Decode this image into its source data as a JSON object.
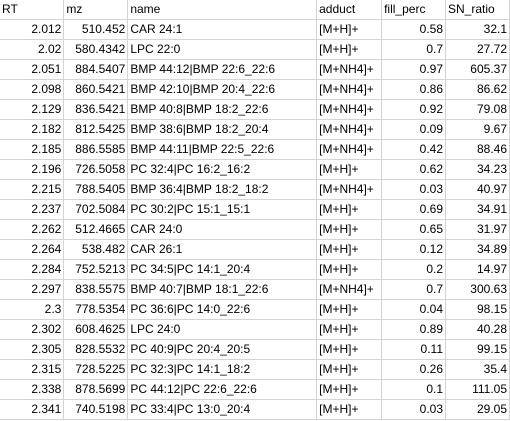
{
  "columns": [
    "RT",
    "mz",
    "name",
    "adduct",
    "fill_perc",
    "SN_ratio"
  ],
  "rows": [
    [
      "2.012",
      "510.452",
      "CAR 24:1",
      "[M+H]+",
      "0.58",
      "32.1"
    ],
    [
      "2.02",
      "580.4342",
      "LPC 22:0",
      "[M+H]+",
      "0.7",
      "27.72"
    ],
    [
      "2.051",
      "884.5407",
      "BMP 44:12|BMP 22:6_22:6",
      "[M+NH4]+",
      "0.97",
      "605.37"
    ],
    [
      "2.098",
      "860.5421",
      "BMP 42:10|BMP 20:4_22:6",
      "[M+NH4]+",
      "0.86",
      "86.62"
    ],
    [
      "2.129",
      "836.5421",
      "BMP 40:8|BMP 18:2_22:6",
      "[M+NH4]+",
      "0.92",
      "79.08"
    ],
    [
      "2.182",
      "812.5425",
      "BMP 38:6|BMP 18:2_20:4",
      "[M+NH4]+",
      "0.09",
      "9.67"
    ],
    [
      "2.185",
      "886.5585",
      "BMP 44:11|BMP 22:5_22:6",
      "[M+NH4]+",
      "0.42",
      "88.46"
    ],
    [
      "2.196",
      "726.5058",
      "PC 32:4|PC 16:2_16:2",
      "[M+H]+",
      "0.62",
      "34.23"
    ],
    [
      "2.215",
      "788.5405",
      "BMP 36:4|BMP 18:2_18:2",
      "[M+NH4]+",
      "0.03",
      "40.97"
    ],
    [
      "2.237",
      "702.5084",
      "PC 30:2|PC 15:1_15:1",
      "[M+H]+",
      "0.69",
      "34.91"
    ],
    [
      "2.262",
      "512.4665",
      "CAR 24:0",
      "[M+H]+",
      "0.65",
      "31.97"
    ],
    [
      "2.264",
      "538.482",
      "CAR 26:1",
      "[M+H]+",
      "0.12",
      "34.89"
    ],
    [
      "2.284",
      "752.5213",
      "PC 34:5|PC 14:1_20:4",
      "[M+H]+",
      "0.2",
      "14.97"
    ],
    [
      "2.297",
      "838.5575",
      "BMP 40:7|BMP 18:1_22:6",
      "[M+NH4]+",
      "0.7",
      "300.63"
    ],
    [
      "2.3",
      "778.5354",
      "PC 36:6|PC 14:0_22:6",
      "[M+H]+",
      "0.04",
      "98.15"
    ],
    [
      "2.302",
      "608.4625",
      "LPC 24:0",
      "[M+H]+",
      "0.89",
      "40.28"
    ],
    [
      "2.305",
      "828.5532",
      "PC 40:9|PC 20:4_20:5",
      "[M+H]+",
      "0.11",
      "99.15"
    ],
    [
      "2.315",
      "728.5225",
      "PC 32:3|PC 14:1_18:2",
      "[M+H]+",
      "0.26",
      "35.4"
    ],
    [
      "2.338",
      "878.5699",
      "PC 44:12|PC 22:6_22:6",
      "[M+H]+",
      "0.1",
      "111.05"
    ],
    [
      "2.341",
      "740.5198",
      "PC 33:4|PC 13:0_20:4",
      "[M+H]+",
      "0.03",
      "29.05"
    ]
  ]
}
